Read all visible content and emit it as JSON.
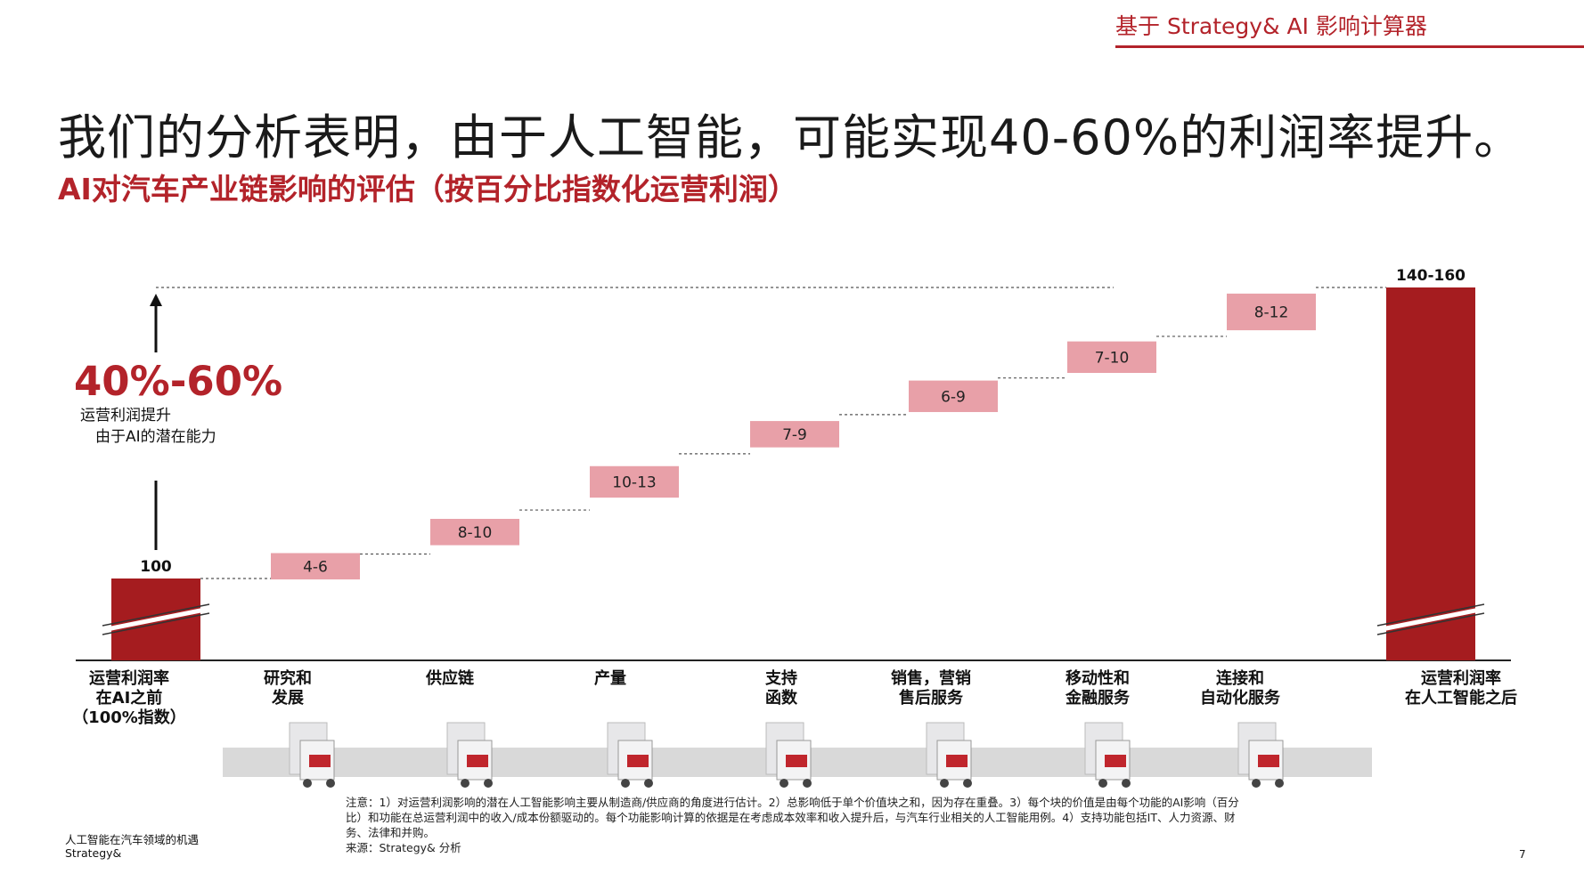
{
  "header": {
    "tag": "基于 Strategy& AI 影响计算器"
  },
  "title": "我们的分析表明，由于人工智能，可能实现40-60%的利润率提升。",
  "subtitle": "AI对汽车产业链影响的评估（按百分比指数化运营利润）",
  "callout": {
    "value": "40%-60%",
    "line1": "运营利润提升",
    "line2": "由于AI的潜在能力"
  },
  "chart_data": {
    "type": "waterfall",
    "title": "AI对汽车产业链影响的评估（按百分比指数化运营利润）",
    "categories": [
      "运营利润率\n在AI之前\n（100%指数）",
      "研究和\n发展",
      "供应链",
      "产量",
      "支持\n函数",
      "销售，营销\n售后服务",
      "移动性和\n金融服务",
      "连接和\n自动化服务",
      "运营利润率\n在人工智能之后"
    ],
    "start": {
      "label": "100",
      "value": 100
    },
    "increments": [
      {
        "label": "4-6",
        "low": 4,
        "high": 6
      },
      {
        "label": "8-10",
        "low": 8,
        "high": 10
      },
      {
        "label": "10-13",
        "low": 10,
        "high": 13
      },
      {
        "label": "7-9",
        "low": 7,
        "high": 9
      },
      {
        "label": "6-9",
        "low": 6,
        "high": 9
      },
      {
        "label": "7-10",
        "low": 7,
        "high": 10
      },
      {
        "label": "8-12",
        "low": 8,
        "high": 12
      }
    ],
    "end": {
      "label": "140-160",
      "low": 140,
      "high": 160
    },
    "axis_break": true,
    "colors": {
      "total_bar": "#a51c1f",
      "increment_bar": "#e8a0a8",
      "accent_text": "#b3232a"
    }
  },
  "note": "注意：1）对运营利润影响的潜在人工智能影响主要从制造商/供应商的角度进行估计。2）总影响低于单个价值块之和，因为存在重叠。3）每个块的价值是由每个功能的AI影响（百分比）和功能在总运营利润中的收入/成本份额驱动的。每个功能影响计算的依据是在考虑成本效率和收入提升后，与汽车行业相关的人工智能用例。4）支持功能包括IT、人力资源、财务、法律和并购。",
  "source": "来源：Strategy& 分析",
  "footer": {
    "line1": "人工智能在汽车领域的机遇",
    "line2": "Strategy&"
  },
  "page_number": "7",
  "icons": [
    "engineer-workstation-icon",
    "delivery-truck-icon",
    "robot-arm-assembly-icon",
    "tablet-analytics-icon",
    "showroom-salesperson-icon",
    "car-financing-icon",
    "connected-car-platform-icon"
  ]
}
